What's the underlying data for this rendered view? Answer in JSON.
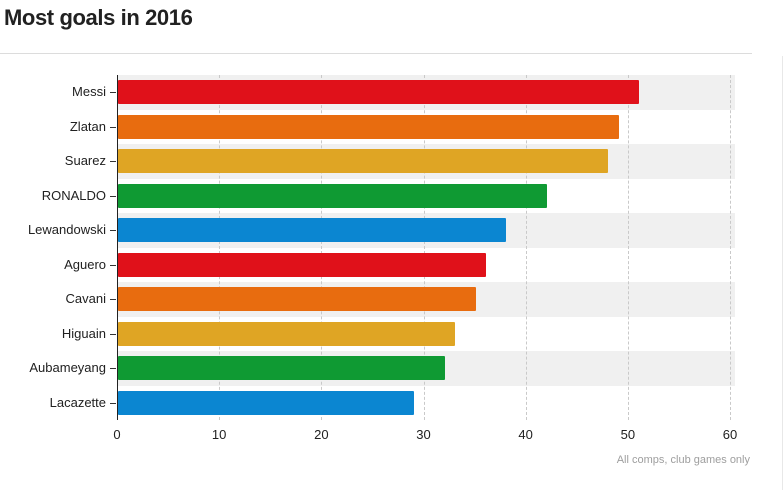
{
  "header": {
    "title": "Most goals in 2016"
  },
  "footer": {
    "note": "All comps, club games only"
  },
  "chart_data": {
    "type": "bar",
    "orientation": "horizontal",
    "title": "Most goals in 2016",
    "categories": [
      "Messi",
      "Zlatan",
      "Suarez",
      "RONALDO",
      "Lewandowski",
      "Aguero",
      "Cavani",
      "Higuain",
      "Aubameyang",
      "Lacazette"
    ],
    "values": [
      51,
      49,
      48,
      42,
      38,
      36,
      35,
      33,
      32,
      29
    ],
    "palette": [
      "#e0111a",
      "#e86c0f",
      "#dfa524",
      "#0f9a33",
      "#0b86d1"
    ],
    "bar_colors": [
      "#e0111a",
      "#e86c0f",
      "#dfa524",
      "#0f9a33",
      "#0b86d1",
      "#e0111a",
      "#e86c0f",
      "#dfa524",
      "#0f9a33",
      "#0b86d1"
    ],
    "xlabel": "",
    "ylabel": "",
    "xlim": [
      0,
      60
    ],
    "xticks": [
      0,
      10,
      20,
      30,
      40,
      50,
      60
    ],
    "grid": "vertical-dashed",
    "legend": "none",
    "alternating_row_background": true,
    "note": "All comps, club games only"
  },
  "colors": {
    "background": "#ffffff",
    "title_text": "#212121",
    "axis_line": "#222222",
    "tick_text": "#212121",
    "gridline": "#c9c9c9",
    "row_band": "#f0f0f0",
    "divider": "#dcdcdc",
    "footnote_text": "#9e9e9e"
  }
}
